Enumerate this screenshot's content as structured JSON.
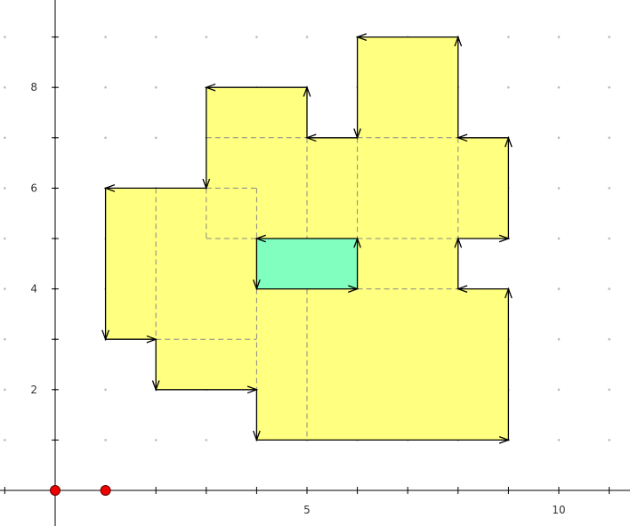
{
  "figure": {
    "x_tick_labels": [
      {
        "value": 5,
        "label": "5"
      },
      {
        "value": 10,
        "label": "10"
      }
    ],
    "y_tick_labels": [
      {
        "value": 2,
        "label": "2"
      },
      {
        "value": 4,
        "label": "4"
      },
      {
        "value": 6,
        "label": "6"
      },
      {
        "value": 8,
        "label": "8"
      }
    ],
    "outer_polygon": [
      [
        1,
        6
      ],
      [
        1,
        3
      ],
      [
        2,
        3
      ],
      [
        2,
        2
      ],
      [
        4,
        2
      ],
      [
        4,
        1
      ],
      [
        9,
        1
      ],
      [
        9,
        4
      ],
      [
        8,
        4
      ],
      [
        8,
        5
      ],
      [
        9,
        5
      ],
      [
        9,
        7
      ],
      [
        8,
        7
      ],
      [
        8,
        9
      ],
      [
        6,
        9
      ],
      [
        6,
        7
      ],
      [
        5,
        7
      ],
      [
        5,
        8
      ],
      [
        3,
        8
      ],
      [
        3,
        6
      ]
    ],
    "inner_polygon": [
      [
        4,
        5
      ],
      [
        4,
        4
      ],
      [
        6,
        4
      ],
      [
        6,
        5
      ]
    ],
    "dashed_segments": [
      [
        [
          2,
          6
        ],
        [
          2,
          3
        ]
      ],
      [
        [
          2,
          3
        ],
        [
          4,
          3
        ]
      ],
      [
        [
          3,
          6
        ],
        [
          4,
          6
        ]
      ],
      [
        [
          4,
          6
        ],
        [
          4,
          5
        ]
      ],
      [
        [
          3,
          6
        ],
        [
          3,
          5
        ]
      ],
      [
        [
          3,
          5
        ],
        [
          4,
          5
        ]
      ],
      [
        [
          3,
          7
        ],
        [
          5,
          7
        ]
      ],
      [
        [
          5,
          7
        ],
        [
          5,
          5
        ]
      ],
      [
        [
          4,
          4
        ],
        [
          4,
          2
        ]
      ],
      [
        [
          5,
          4
        ],
        [
          5,
          1
        ]
      ],
      [
        [
          6,
          7
        ],
        [
          6,
          5
        ]
      ],
      [
        [
          6,
          7
        ],
        [
          8,
          7
        ]
      ],
      [
        [
          6,
          5
        ],
        [
          8,
          5
        ]
      ],
      [
        [
          8,
          7
        ],
        [
          8,
          5
        ]
      ],
      [
        [
          6,
          4
        ],
        [
          8,
          4
        ]
      ]
    ],
    "points": [
      [
        0,
        0
      ],
      [
        1,
        0
      ]
    ]
  }
}
